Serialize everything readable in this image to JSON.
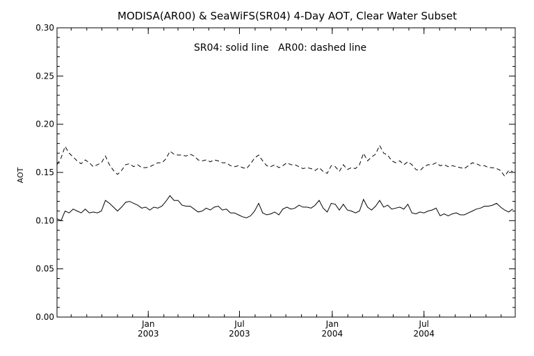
{
  "chart_data": {
    "type": "line",
    "title": "MODISA(AR00) & SeaWiFS(SR04) 4-Day AOT, Clear Water Subset",
    "ylabel": "AOT",
    "xlabel": "",
    "annotation": "SR04: solid line   AR00: dashed line",
    "ylim": [
      0.0,
      0.3
    ],
    "yticks": [
      "0.00",
      "0.05",
      "0.10",
      "0.15",
      "0.20",
      "0.25",
      "0.30"
    ],
    "yticks_values": [
      0.0,
      0.05,
      0.1,
      0.15,
      0.2,
      0.25,
      0.3
    ],
    "xlim": [
      "2002-07-04",
      "2004-12-29"
    ],
    "xticks": [
      {
        "date": "2003-01-01",
        "line1": "Jan",
        "line2": "2003"
      },
      {
        "date": "2003-07-01",
        "line1": "Jul",
        "line2": "2003"
      },
      {
        "date": "2004-01-01",
        "line1": "Jan",
        "line2": "2004"
      },
      {
        "date": "2004-07-01",
        "line1": "Jul",
        "line2": "2004"
      }
    ],
    "grid": false,
    "series": [
      {
        "name": "SR04",
        "style": "solid",
        "color": "#000000",
        "x": [
          "2002-07-04",
          "2002-07-12",
          "2002-07-20",
          "2002-07-28",
          "2002-08-05",
          "2002-08-13",
          "2002-08-21",
          "2002-08-29",
          "2002-09-06",
          "2002-09-14",
          "2002-09-22",
          "2002-09-30",
          "2002-10-08",
          "2002-10-16",
          "2002-10-24",
          "2002-11-01",
          "2002-11-09",
          "2002-11-17",
          "2002-11-25",
          "2002-12-03",
          "2002-12-11",
          "2002-12-19",
          "2002-12-27",
          "2003-01-04",
          "2003-01-12",
          "2003-01-20",
          "2003-01-28",
          "2003-02-05",
          "2003-02-13",
          "2003-02-21",
          "2003-03-01",
          "2003-03-09",
          "2003-03-17",
          "2003-03-25",
          "2003-04-02",
          "2003-04-10",
          "2003-04-18",
          "2003-04-26",
          "2003-05-04",
          "2003-05-12",
          "2003-05-20",
          "2003-05-28",
          "2003-06-05",
          "2003-06-13",
          "2003-06-21",
          "2003-06-29",
          "2003-07-07",
          "2003-07-15",
          "2003-07-23",
          "2003-07-31",
          "2003-08-08",
          "2003-08-16",
          "2003-08-24",
          "2003-09-01",
          "2003-09-09",
          "2003-09-17",
          "2003-09-25",
          "2003-10-03",
          "2003-10-11",
          "2003-10-19",
          "2003-10-27",
          "2003-11-04",
          "2003-11-12",
          "2003-11-20",
          "2003-11-28",
          "2003-12-06",
          "2003-12-14",
          "2003-12-22",
          "2003-12-30",
          "2004-01-07",
          "2004-01-15",
          "2004-01-23",
          "2004-01-31",
          "2004-02-08",
          "2004-02-16",
          "2004-02-24",
          "2004-03-03",
          "2004-03-11",
          "2004-03-19",
          "2004-03-27",
          "2004-04-04",
          "2004-04-12",
          "2004-04-20",
          "2004-04-28",
          "2004-05-06",
          "2004-05-14",
          "2004-05-22",
          "2004-05-30",
          "2004-06-07",
          "2004-06-15",
          "2004-06-23",
          "2004-07-01",
          "2004-07-09",
          "2004-07-17",
          "2004-07-25",
          "2004-08-02",
          "2004-08-10",
          "2004-08-18",
          "2004-08-26",
          "2004-09-03",
          "2004-09-11",
          "2004-09-19",
          "2004-09-27",
          "2004-10-05",
          "2004-10-13",
          "2004-10-21",
          "2004-10-29",
          "2004-11-06",
          "2004-11-14",
          "2004-11-22",
          "2004-11-30",
          "2004-12-08",
          "2004-12-16",
          "2004-12-24"
        ],
        "y": [
          0.102,
          0.1,
          0.11,
          0.108,
          0.112,
          0.11,
          0.108,
          0.112,
          0.108,
          0.109,
          0.108,
          0.11,
          0.121,
          0.118,
          0.114,
          0.11,
          0.114,
          0.119,
          0.12,
          0.118,
          0.116,
          0.113,
          0.114,
          0.111,
          0.114,
          0.113,
          0.115,
          0.12,
          0.126,
          0.121,
          0.121,
          0.116,
          0.115,
          0.115,
          0.112,
          0.109,
          0.11,
          0.113,
          0.111,
          0.114,
          0.115,
          0.111,
          0.112,
          0.108,
          0.108,
          0.106,
          0.104,
          0.103,
          0.105,
          0.11,
          0.118,
          0.108,
          0.106,
          0.107,
          0.109,
          0.106,
          0.112,
          0.114,
          0.112,
          0.113,
          0.116,
          0.114,
          0.114,
          0.113,
          0.116,
          0.121,
          0.113,
          0.109,
          0.118,
          0.117,
          0.111,
          0.117,
          0.111,
          0.11,
          0.108,
          0.11,
          0.122,
          0.114,
          0.111,
          0.115,
          0.121,
          0.114,
          0.116,
          0.112,
          0.113,
          0.114,
          0.112,
          0.117,
          0.108,
          0.107,
          0.109,
          0.108,
          0.11,
          0.111,
          0.113,
          0.105,
          0.107,
          0.105,
          0.107,
          0.108,
          0.106,
          0.106,
          0.108,
          0.11,
          0.112,
          0.113,
          0.115,
          0.115,
          0.116,
          0.118,
          0.114,
          0.111,
          0.109,
          0.112
        ]
      },
      {
        "name": "AR00",
        "style": "dashed",
        "color": "#000000",
        "x": [
          "2002-07-04",
          "2002-07-12",
          "2002-07-20",
          "2002-07-28",
          "2002-08-05",
          "2002-08-13",
          "2002-08-21",
          "2002-08-29",
          "2002-09-06",
          "2002-09-14",
          "2002-09-22",
          "2002-09-30",
          "2002-10-08",
          "2002-10-16",
          "2002-10-24",
          "2002-11-01",
          "2002-11-09",
          "2002-11-17",
          "2002-11-25",
          "2002-12-03",
          "2002-12-11",
          "2002-12-19",
          "2002-12-27",
          "2003-01-04",
          "2003-01-12",
          "2003-01-20",
          "2003-01-28",
          "2003-02-05",
          "2003-02-13",
          "2003-02-21",
          "2003-03-01",
          "2003-03-09",
          "2003-03-17",
          "2003-03-25",
          "2003-04-02",
          "2003-04-10",
          "2003-04-18",
          "2003-04-26",
          "2003-05-04",
          "2003-05-12",
          "2003-05-20",
          "2003-05-28",
          "2003-06-05",
          "2003-06-13",
          "2003-06-21",
          "2003-06-29",
          "2003-07-07",
          "2003-07-15",
          "2003-07-23",
          "2003-07-31",
          "2003-08-08",
          "2003-08-16",
          "2003-08-24",
          "2003-09-01",
          "2003-09-09",
          "2003-09-17",
          "2003-09-25",
          "2003-10-03",
          "2003-10-11",
          "2003-10-19",
          "2003-10-27",
          "2003-11-04",
          "2003-11-12",
          "2003-11-20",
          "2003-11-28",
          "2003-12-06",
          "2003-12-14",
          "2003-12-22",
          "2003-12-30",
          "2004-01-07",
          "2004-01-15",
          "2004-01-23",
          "2004-01-31",
          "2004-02-08",
          "2004-02-16",
          "2004-02-24",
          "2004-03-03",
          "2004-03-11",
          "2004-03-19",
          "2004-03-27",
          "2004-04-04",
          "2004-04-12",
          "2004-04-20",
          "2004-04-28",
          "2004-05-06",
          "2004-05-14",
          "2004-05-22",
          "2004-05-30",
          "2004-06-07",
          "2004-06-15",
          "2004-06-23",
          "2004-07-01",
          "2004-07-09",
          "2004-07-17",
          "2004-07-25",
          "2004-08-02",
          "2004-08-10",
          "2004-08-18",
          "2004-08-26",
          "2004-09-03",
          "2004-09-11",
          "2004-09-19",
          "2004-09-27",
          "2004-10-05",
          "2004-10-13",
          "2004-10-21",
          "2004-10-29",
          "2004-11-06",
          "2004-11-14",
          "2004-11-22",
          "2004-11-30",
          "2004-12-08",
          "2004-12-16",
          "2004-12-24"
        ],
        "y": [
          0.158,
          0.165,
          0.177,
          0.17,
          0.166,
          0.162,
          0.159,
          0.163,
          0.16,
          0.156,
          0.158,
          0.16,
          0.167,
          0.158,
          0.152,
          0.148,
          0.152,
          0.158,
          0.159,
          0.156,
          0.158,
          0.155,
          0.155,
          0.156,
          0.158,
          0.16,
          0.16,
          0.164,
          0.172,
          0.169,
          0.168,
          0.168,
          0.167,
          0.169,
          0.167,
          0.163,
          0.162,
          0.163,
          0.161,
          0.163,
          0.162,
          0.16,
          0.16,
          0.157,
          0.156,
          0.157,
          0.155,
          0.154,
          0.159,
          0.165,
          0.168,
          0.162,
          0.157,
          0.156,
          0.158,
          0.155,
          0.157,
          0.16,
          0.158,
          0.158,
          0.156,
          0.154,
          0.155,
          0.154,
          0.152,
          0.155,
          0.151,
          0.149,
          0.157,
          0.156,
          0.151,
          0.158,
          0.153,
          0.155,
          0.154,
          0.158,
          0.17,
          0.162,
          0.166,
          0.169,
          0.178,
          0.17,
          0.168,
          0.162,
          0.16,
          0.162,
          0.158,
          0.161,
          0.158,
          0.153,
          0.152,
          0.156,
          0.158,
          0.158,
          0.16,
          0.157,
          0.158,
          0.156,
          0.157,
          0.156,
          0.155,
          0.154,
          0.157,
          0.16,
          0.159,
          0.157,
          0.157,
          0.155,
          0.155,
          0.154,
          0.152,
          0.146,
          0.152,
          0.151
        ]
      }
    ]
  }
}
